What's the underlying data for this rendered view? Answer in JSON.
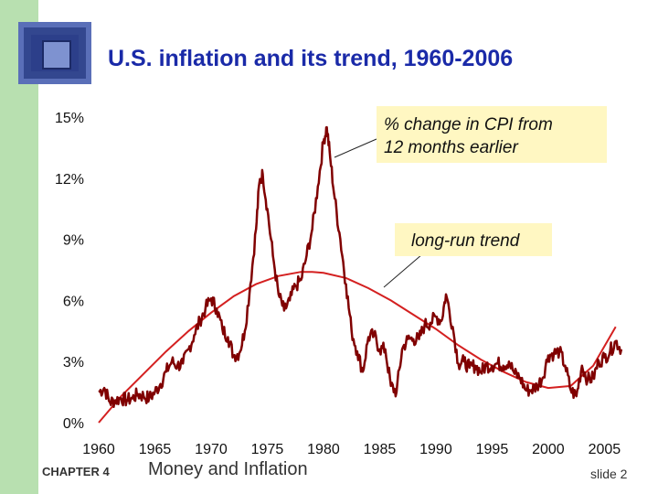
{
  "slide": {
    "title": "U.S. inflation and its trend, 1960-2006",
    "chapter": "CHAPTER 4",
    "topic": "Money and Inflation",
    "slide_label": "slide 2"
  },
  "colors": {
    "series": "#800000",
    "trend": "#d42020",
    "callout_bg": "#fff7c2",
    "title": "#1a2aa8",
    "sidebar": "#b8e0b0"
  },
  "chart_data": {
    "type": "line",
    "title": "U.S. inflation and its trend, 1960-2006",
    "xlim": [
      1960,
      2007
    ],
    "ylim": [
      0,
      15
    ],
    "x_ticks": [
      1960,
      1965,
      1970,
      1975,
      1980,
      1985,
      1990,
      1995,
      2000,
      2005
    ],
    "y_ticks": [
      0,
      3,
      6,
      9,
      12,
      15
    ],
    "y_tick_labels": [
      "0%",
      "3%",
      "6%",
      "9%",
      "12%",
      "15%"
    ],
    "grid": false,
    "annotations": [
      "% change in CPI from\n12 months earlier",
      "long-run trend"
    ],
    "series": [
      {
        "name": "% change in CPI from 12 months earlier",
        "x": [
          1960.0,
          1960.5,
          1961.0,
          1961.5,
          1962.0,
          1962.5,
          1963.0,
          1963.5,
          1964.0,
          1964.5,
          1965.0,
          1965.5,
          1966.0,
          1966.5,
          1967.0,
          1967.5,
          1968.0,
          1968.5,
          1969.0,
          1969.5,
          1970.0,
          1970.5,
          1971.0,
          1971.5,
          1972.0,
          1972.5,
          1973.0,
          1973.5,
          1974.0,
          1974.3,
          1974.6,
          1975.0,
          1975.5,
          1976.0,
          1976.5,
          1977.0,
          1977.5,
          1978.0,
          1978.5,
          1979.0,
          1979.5,
          1980.0,
          1980.3,
          1980.6,
          1981.0,
          1981.5,
          1982.0,
          1982.5,
          1983.0,
          1983.5,
          1984.0,
          1984.5,
          1985.0,
          1985.5,
          1986.0,
          1986.5,
          1987.0,
          1987.5,
          1988.0,
          1988.5,
          1989.0,
          1989.5,
          1990.0,
          1990.5,
          1990.9,
          1991.5,
          1992.0,
          1992.5,
          1993.0,
          1993.5,
          1994.0,
          1994.5,
          1995.0,
          1995.5,
          1996.0,
          1996.5,
          1997.0,
          1997.5,
          1998.0,
          1998.5,
          1999.0,
          1999.5,
          2000.0,
          2000.5,
          2001.0,
          2001.5,
          2002.0,
          2002.5,
          2003.0,
          2003.5,
          2004.0,
          2004.5,
          2005.0,
          2005.5,
          2006.0,
          2006.5
        ],
        "y": [
          1.5,
          1.7,
          1.0,
          1.1,
          1.2,
          1.1,
          1.2,
          1.4,
          1.3,
          1.2,
          1.5,
          1.9,
          2.5,
          3.0,
          2.8,
          2.9,
          3.6,
          4.3,
          5.0,
          5.6,
          6.1,
          5.6,
          4.6,
          4.2,
          3.3,
          3.4,
          4.5,
          6.8,
          9.5,
          11.8,
          12.2,
          10.5,
          8.2,
          6.3,
          5.5,
          6.0,
          6.7,
          7.0,
          8.2,
          9.5,
          11.6,
          13.8,
          14.5,
          13.0,
          11.0,
          9.0,
          6.8,
          4.5,
          3.5,
          2.5,
          4.2,
          4.3,
          3.6,
          3.6,
          1.8,
          1.5,
          3.6,
          4.1,
          4.1,
          4.1,
          4.8,
          4.9,
          5.2,
          5.0,
          6.3,
          4.7,
          2.9,
          3.0,
          2.7,
          2.8,
          2.5,
          2.8,
          2.8,
          2.9,
          2.8,
          3.0,
          2.4,
          2.2,
          1.6,
          1.6,
          1.8,
          2.2,
          3.3,
          3.4,
          3.5,
          2.8,
          1.6,
          1.3,
          2.8,
          2.1,
          2.2,
          3.0,
          3.2,
          3.5,
          4.0,
          3.6
        ]
      },
      {
        "name": "long-run trend",
        "x": [
          1960,
          1962,
          1964,
          1966,
          1968,
          1970,
          1972,
          1974,
          1976,
          1978,
          1979,
          1980,
          1982,
          1984,
          1986,
          1988,
          1990,
          1992,
          1994,
          1996,
          1998,
          2000,
          2002,
          2004,
          2006
        ],
        "y": [
          0.0,
          1.3,
          2.4,
          3.5,
          4.5,
          5.4,
          6.2,
          6.8,
          7.2,
          7.4,
          7.4,
          7.35,
          7.1,
          6.6,
          6.0,
          5.3,
          4.6,
          3.8,
          3.1,
          2.5,
          2.0,
          1.7,
          1.8,
          2.8,
          4.7
        ]
      }
    ]
  }
}
